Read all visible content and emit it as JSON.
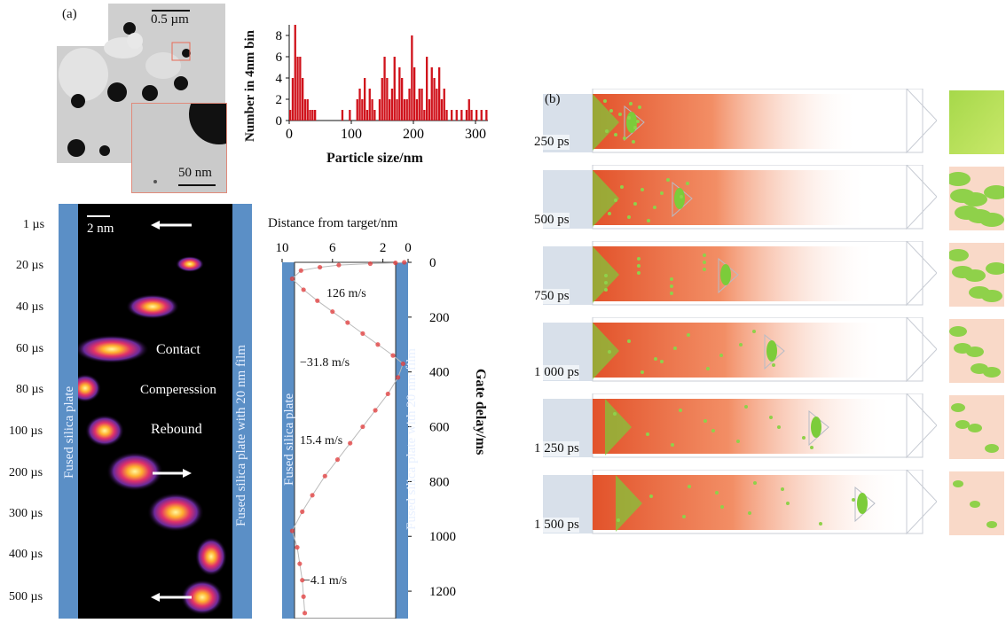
{
  "panel_a": {
    "label": "(a)",
    "scale_bar_main": "0.5 µm",
    "scale_bar_inset": "50 nm",
    "stack_scale_bar": "2 nm",
    "rotated_left": "Fused silica plate",
    "rotated_right": "Fused silica plate with 20 nm film",
    "time_labels": [
      "1 µs",
      "20 µs",
      "40 µs",
      "60 µs",
      "80 µs",
      "100 µs",
      "200 µs",
      "300 µs",
      "400 µs",
      "500 µs"
    ],
    "annotations": [
      "Contact",
      "Comperession",
      "Rebound"
    ]
  },
  "histogram": {
    "ylabel": "Number in 4nm bin",
    "xlabel": "Particle size/nm",
    "yticks": [
      "0",
      "2",
      "4",
      "6",
      "8"
    ],
    "xticks": [
      "0",
      "100",
      "200",
      "300"
    ]
  },
  "trajectory": {
    "top_label": "Distance from target/nm",
    "top_ticks": [
      "10",
      "6",
      "2",
      "0"
    ],
    "right_ticks": [
      "0",
      "200",
      "400",
      "600",
      "800",
      "1000",
      "1200"
    ],
    "right_label": "Gate delay/ms",
    "left_plate": "Fused silica plate",
    "right_plate": "Fused silica plate with 20 nm film",
    "velocities": [
      "126 m/s",
      "−31.8 m/s",
      "15.4 m/s",
      "−4.1 m/s"
    ]
  },
  "panel_b": {
    "label": "(b)",
    "frames": [
      "250 ps",
      "500 ps",
      "750 ps",
      "1 000 ps",
      "1 250 ps",
      "1 500 ps"
    ]
  },
  "chart_data": [
    {
      "type": "bar",
      "xlabel": "Particle size/nm",
      "ylabel": "Number in 4nm bin",
      "xlim": [
        0,
        320
      ],
      "ylim": [
        0,
        9
      ],
      "bin_width": 4,
      "x": [
        2,
        6,
        10,
        14,
        18,
        22,
        26,
        30,
        34,
        38,
        42,
        86,
        98,
        110,
        114,
        118,
        122,
        126,
        130,
        134,
        138,
        146,
        150,
        154,
        158,
        162,
        166,
        170,
        174,
        178,
        182,
        186,
        190,
        194,
        198,
        202,
        206,
        210,
        214,
        218,
        222,
        226,
        230,
        234,
        238,
        242,
        246,
        250,
        254,
        262,
        270,
        278,
        286,
        290,
        294,
        302,
        310,
        318
      ],
      "values": [
        1,
        4,
        9,
        6,
        6,
        4,
        2,
        2,
        1,
        1,
        1,
        1,
        1,
        2,
        3,
        2,
        4,
        1,
        3,
        2,
        1,
        2,
        4,
        6,
        4,
        2,
        3,
        6,
        2,
        5,
        4,
        2,
        2,
        3,
        8,
        5,
        2,
        3,
        3,
        1,
        6,
        2,
        5,
        4,
        3,
        5,
        2,
        3,
        1,
        1,
        1,
        1,
        1,
        2,
        1,
        1,
        1,
        1
      ],
      "color": "#d0121b"
    },
    {
      "type": "scatter",
      "xlabel": "Distance from target/nm",
      "ylabel": "Gate delay/ms",
      "xlim": [
        10,
        0
      ],
      "ylim": [
        1300,
        0
      ],
      "x": [
        0.3,
        1,
        3,
        5.5,
        7,
        8.5,
        9.2,
        8.3,
        7.2,
        6,
        4.8,
        3.6,
        2.4,
        1.2,
        0.4,
        0.8,
        1.6,
        2.6,
        3.6,
        4.6,
        5.6,
        6.6,
        7.6,
        8.4,
        9.2,
        8.8,
        8.6,
        8.4,
        8.3,
        8.2
      ],
      "y": [
        0,
        2,
        5,
        10,
        18,
        30,
        60,
        100,
        140,
        180,
        220,
        260,
        300,
        340,
        370,
        420,
        480,
        540,
        600,
        660,
        720,
        780,
        850,
        910,
        980,
        1040,
        1100,
        1160,
        1220,
        1280
      ],
      "color": "#e23a3a"
    }
  ]
}
